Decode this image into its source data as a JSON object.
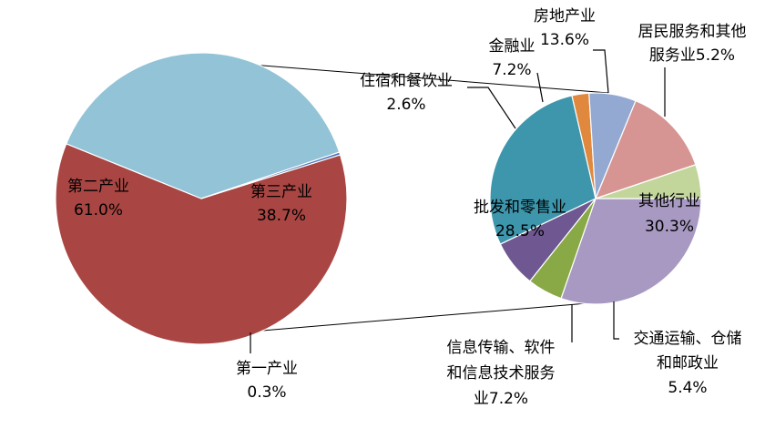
{
  "chart_data": {
    "type": "pie",
    "pies": [
      {
        "slices": [
          {
            "label": "第二产业",
            "value_text": "61.0%",
            "value": 61.0,
            "color": "#a94643"
          },
          {
            "label": "第三产业",
            "value_text": "38.7%",
            "value": 38.7,
            "color": "#92c3d6"
          },
          {
            "label": "第一产业",
            "value_text": "0.3%",
            "value": 0.3,
            "color": "#4c74b8"
          }
        ]
      },
      {
        "slices": [
          {
            "label": "其他行业",
            "value_text": "30.3%",
            "value": 30.3,
            "color": "#a799c1"
          },
          {
            "label": "交通运输、仓储和邮政业",
            "label_lines": [
              "交通运输、仓储",
              "和邮政业"
            ],
            "value_text": "5.4%",
            "value": 5.4,
            "color": "#88a946"
          },
          {
            "label": "信息传输、软件和信息技术服务业",
            "label_lines": [
              "信息传输、软件",
              "和信息技术服务"
            ],
            "value_text": "业7.2%",
            "value": 7.2,
            "color": "#6f5891"
          },
          {
            "label": "批发和零售业",
            "value_text": "28.5%",
            "value": 28.5,
            "color": "#3d96ac"
          },
          {
            "label": "住宿和餐饮业",
            "value_text": "2.6%",
            "value": 2.6,
            "color": "#e0883e"
          },
          {
            "label": "金融业",
            "value_text": "7.2%",
            "value": 7.2,
            "color": "#93a9d2"
          },
          {
            "label": "房地产业",
            "value_text": "13.6%",
            "value": 13.6,
            "color": "#d69593"
          },
          {
            "label": "居民服务和其他服务业",
            "label_lines": [
              "居民服务和其他",
              "服务业5.2%"
            ],
            "value": 5.2,
            "color": "#c2d69b"
          }
        ]
      }
    ]
  }
}
